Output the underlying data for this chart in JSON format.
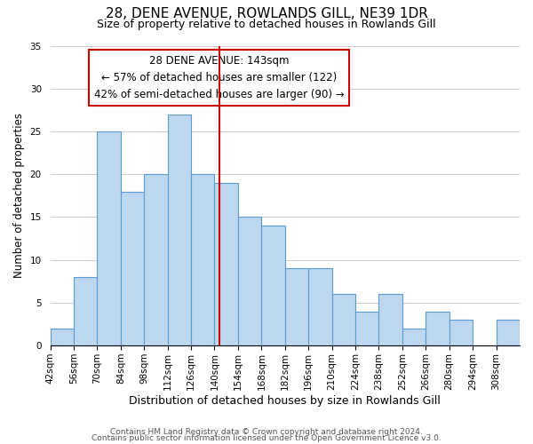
{
  "title": "28, DENE AVENUE, ROWLANDS GILL, NE39 1DR",
  "subtitle": "Size of property relative to detached houses in Rowlands Gill",
  "xlabel": "Distribution of detached houses by size in Rowlands Gill",
  "ylabel": "Number of detached properties",
  "bar_edges": [
    42,
    56,
    70,
    84,
    98,
    112,
    126,
    140,
    154,
    168,
    182,
    196,
    210,
    224,
    238,
    252,
    266,
    280,
    294,
    308,
    322
  ],
  "bar_heights": [
    2,
    8,
    25,
    18,
    20,
    27,
    20,
    19,
    15,
    14,
    9,
    9,
    6,
    4,
    6,
    2,
    4,
    3,
    0,
    3
  ],
  "bar_color": "#bdd7ee",
  "bar_edgecolor": "#5b9bd5",
  "reference_line_x": 143,
  "reference_line_color": "#cc0000",
  "annotation_line1": "28 DENE AVENUE: 143sqm",
  "annotation_line2": "← 57% of detached houses are smaller (122)",
  "annotation_line3": "42% of semi-detached houses are larger (90) →",
  "annotation_box_facecolor": "white",
  "annotation_box_edgecolor": "#cc0000",
  "ylim": [
    0,
    35
  ],
  "yticks": [
    0,
    5,
    10,
    15,
    20,
    25,
    30,
    35
  ],
  "bg_color": "white",
  "grid_color": "#cccccc",
  "footer_line1": "Contains HM Land Registry data © Crown copyright and database right 2024.",
  "footer_line2": "Contains public sector information licensed under the Open Government Licence v3.0.",
  "title_fontsize": 11,
  "subtitle_fontsize": 9,
  "xlabel_fontsize": 9,
  "ylabel_fontsize": 8.5,
  "tick_fontsize": 7.5,
  "annotation_fontsize": 8.5,
  "footer_fontsize": 6.5
}
